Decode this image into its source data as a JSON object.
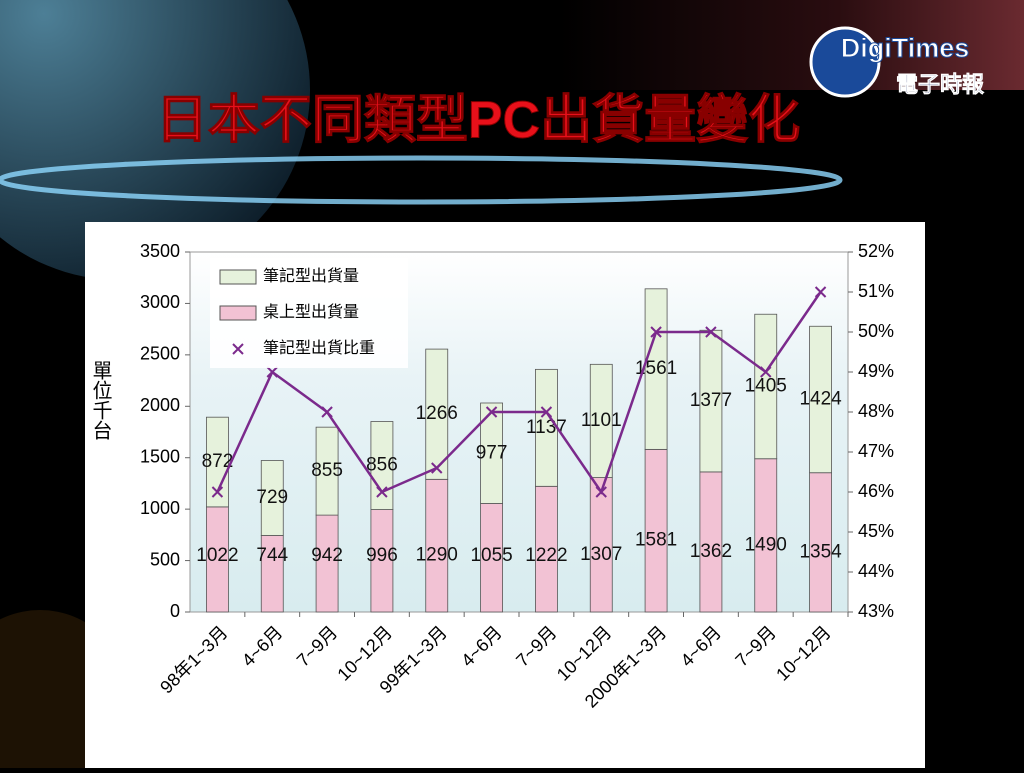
{
  "logo": {
    "name": "DigiTimes",
    "subtitle": "電子時報"
  },
  "chart_data": {
    "type": "stacked-bar-line",
    "title": "日本不同類型PC出貨量變化",
    "y_label": "單位千台",
    "categories": [
      "98年1~3月",
      "4~6月",
      "7~9月",
      "10~12月",
      "99年1~3月",
      "4~6月",
      "7~9月",
      "10~12月",
      "2000年1~3月",
      "4~6月",
      "7~9月",
      "10~12月"
    ],
    "series": [
      {
        "name": "筆記型出貨量",
        "color": "#e6f2dc",
        "values": [
          872,
          729,
          855,
          856,
          1266,
          977,
          1137,
          1101,
          1561,
          1377,
          1405,
          1424
        ]
      },
      {
        "name": "桌上型出貨量",
        "color": "#f2c2d4",
        "values": [
          1022,
          744,
          942,
          996,
          1290,
          1055,
          1222,
          1307,
          1581,
          1362,
          1490,
          1354
        ]
      },
      {
        "name": "筆記型出貨比重",
        "color": "#7b2a8c",
        "axis": "y2",
        "values": [
          46,
          49,
          48,
          46,
          46.6,
          48,
          48,
          46,
          50,
          50,
          49,
          51
        ]
      }
    ],
    "ylim": [
      0,
      3500
    ],
    "yticks": [
      0,
      500,
      1000,
      1500,
      2000,
      2500,
      3000,
      3500
    ],
    "y2lim": [
      43,
      52
    ],
    "y2ticks": [
      {
        "value": 43,
        "label": "43%"
      },
      {
        "value": 44,
        "label": "44%"
      },
      {
        "value": 45,
        "label": "45%"
      },
      {
        "value": 46,
        "label": "46%"
      },
      {
        "value": 47,
        "label": "47%"
      },
      {
        "value": 48,
        "label": "48%"
      },
      {
        "value": 49,
        "label": "49%"
      },
      {
        "value": 50,
        "label": "50%"
      },
      {
        "value": 51,
        "label": "51%"
      },
      {
        "value": 52,
        "label": "52%"
      }
    ],
    "grid": false,
    "legend": "top-left"
  }
}
